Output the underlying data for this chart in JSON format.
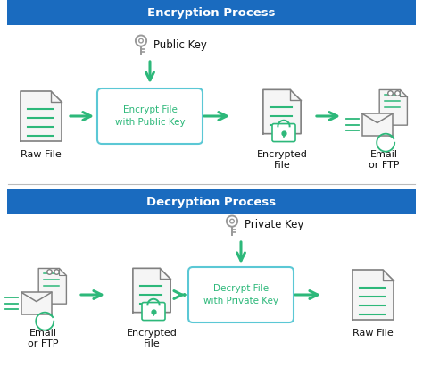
{
  "title_encryption": "Encryption Process",
  "title_decryption": "Decryption Process",
  "header_bg": "#1a6bbf",
  "header_text_color": "#ffffff",
  "arrow_color": "#2db87a",
  "box_border_color": "#5bc8d5",
  "box_text_color": "#2db87a",
  "box_bg": "#ffffff",
  "icon_gray": "#808080",
  "icon_green": "#2db87a",
  "key_color": "#999999",
  "label_color": "#111111",
  "background": "#ffffff",
  "divider_color": "#bbbbbb",
  "encrypt_box_text": "Encrypt File\nwith Public Key",
  "decrypt_box_text": "Decrypt File\nwith Private Key",
  "public_key_label": "Public Key",
  "private_key_label": "Private Key",
  "enc_labels": [
    "Raw File",
    "Encrypted\nFile",
    "Email\nor FTP"
  ],
  "dec_labels": [
    "Email\nor FTP",
    "Encrypted\nFile",
    "Raw File"
  ],
  "label_fontsize": 8.0,
  "header_fontsize": 9.5
}
